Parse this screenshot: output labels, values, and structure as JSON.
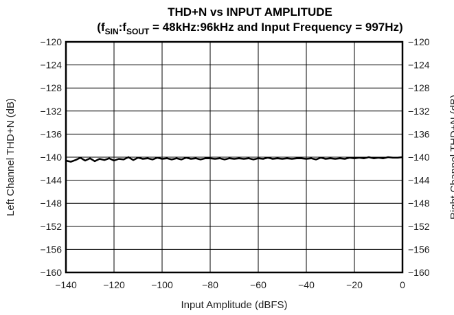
{
  "chart_data": {
    "type": "line",
    "title": "THD+N vs INPUT AMPLITUDE",
    "subtitle": {
      "open": "(f",
      "sub1": "SIN",
      "colon": ":f",
      "sub2": "SOUT",
      "rest": " = 48kHz:96kHz and Input Frequency = 997Hz)"
    },
    "xlabel": "Input Amplitude (dBFS)",
    "ylabel_left": "Left Channel THD+N (dB)",
    "ylabel_right": "Right Channel THD+N (dB)",
    "xlim": [
      -140,
      0
    ],
    "ylim": [
      -160,
      -120
    ],
    "xticks": [
      -140,
      -120,
      -100,
      -80,
      -60,
      -40,
      -20,
      0
    ],
    "yticks": [
      -120,
      -124,
      -128,
      -132,
      -136,
      -140,
      -144,
      -148,
      -152,
      -156,
      -160
    ],
    "grid": true,
    "series": [
      {
        "color": "#000000",
        "x": [
          -140,
          -138,
          -136,
          -134,
          -132,
          -130,
          -128,
          -126,
          -124,
          -122,
          -120,
          -118,
          -116,
          -114,
          -112,
          -110,
          -108,
          -106,
          -104,
          -102,
          -100,
          -98,
          -96,
          -94,
          -92,
          -90,
          -88,
          -86,
          -84,
          -82,
          -80,
          -78,
          -76,
          -74,
          -72,
          -70,
          -68,
          -66,
          -64,
          -62,
          -60,
          -58,
          -56,
          -54,
          -52,
          -50,
          -48,
          -46,
          -44,
          -42,
          -40,
          -38,
          -36,
          -34,
          -32,
          -30,
          -28,
          -26,
          -24,
          -22,
          -20,
          -18,
          -16,
          -14,
          -12,
          -10,
          -8,
          -6,
          -4,
          -2,
          0
        ],
        "y": [
          -140.6,
          -140.8,
          -140.5,
          -140.1,
          -140.6,
          -140.2,
          -140.7,
          -140.3,
          -140.5,
          -140.2,
          -140.6,
          -140.3,
          -140.4,
          -140.0,
          -140.5,
          -140.1,
          -140.3,
          -140.2,
          -140.4,
          -140.1,
          -140.3,
          -140.2,
          -140.4,
          -140.2,
          -140.4,
          -140.1,
          -140.3,
          -140.2,
          -140.4,
          -140.2,
          -140.2,
          -140.3,
          -140.2,
          -140.4,
          -140.2,
          -140.3,
          -140.2,
          -140.3,
          -140.2,
          -140.4,
          -140.2,
          -140.3,
          -140.1,
          -140.3,
          -140.2,
          -140.3,
          -140.2,
          -140.3,
          -140.2,
          -140.2,
          -140.3,
          -140.2,
          -140.4,
          -140.1,
          -140.3,
          -140.2,
          -140.3,
          -140.2,
          -140.3,
          -140.1,
          -140.2,
          -140.1,
          -140.2,
          -140.0,
          -140.2,
          -140.1,
          -140.2,
          -140.0,
          -140.1,
          -140.1,
          -140.0
        ]
      }
    ]
  }
}
